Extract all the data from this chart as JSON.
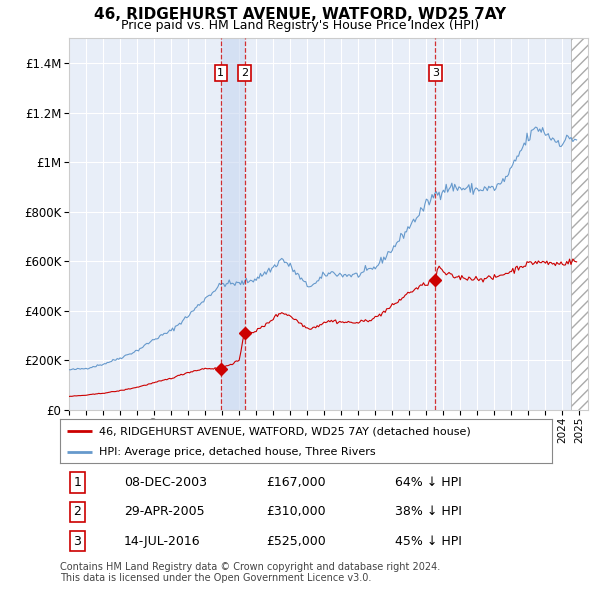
{
  "title": "46, RIDGEHURST AVENUE, WATFORD, WD25 7AY",
  "subtitle": "Price paid vs. HM Land Registry's House Price Index (HPI)",
  "title_fontsize": 11,
  "subtitle_fontsize": 9,
  "ylim": [
    0,
    1500000
  ],
  "yticks": [
    0,
    200000,
    400000,
    600000,
    800000,
    1000000,
    1200000,
    1400000
  ],
  "legend_line1": "46, RIDGEHURST AVENUE, WATFORD, WD25 7AY (detached house)",
  "legend_line2": "HPI: Average price, detached house, Three Rivers",
  "line1_color": "#cc0000",
  "line2_color": "#6699cc",
  "footnote": "Contains HM Land Registry data © Crown copyright and database right 2024.\nThis data is licensed under the Open Government Licence v3.0.",
  "transactions": [
    {
      "id": 1,
      "date": "08-DEC-2003",
      "price": 167000,
      "pct": "64%",
      "x_year": 2003.92
    },
    {
      "id": 2,
      "date": "29-APR-2005",
      "price": 310000,
      "pct": "38%",
      "x_year": 2005.32
    },
    {
      "id": 3,
      "date": "14-JUL-2016",
      "price": 525000,
      "pct": "45%",
      "x_year": 2016.53
    }
  ],
  "xlim": [
    1995.0,
    2025.5
  ],
  "xtick_years": [
    1995,
    1996,
    1997,
    1998,
    1999,
    2000,
    2001,
    2002,
    2003,
    2004,
    2005,
    2006,
    2007,
    2008,
    2009,
    2010,
    2011,
    2012,
    2013,
    2014,
    2015,
    2016,
    2017,
    2018,
    2019,
    2020,
    2021,
    2022,
    2023,
    2024,
    2025
  ],
  "bg_color": "#e8eef8",
  "highlight_bg": "#ddeeff",
  "sale_marker_color": "#cc0000",
  "hatch_start": 2024.5
}
